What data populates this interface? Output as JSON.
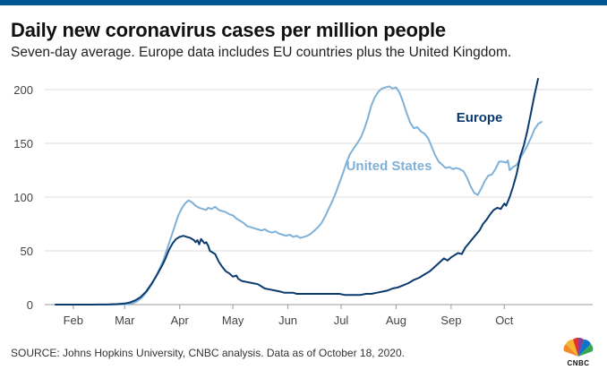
{
  "header": {
    "title": "Daily new coronavirus cases per million people",
    "subtitle": "Seven-day average. Europe data includes EU countries plus the United Kingdom."
  },
  "footer": {
    "source": "SOURCE: Johns Hopkins University, CNBC analysis. Data as of October 18, 2020.",
    "logo_text": "CNBC"
  },
  "chart_data": {
    "type": "line",
    "title": "Daily new coronavirus cases per million people",
    "subtitle": "Seven-day average. Europe data includes EU countries plus the United Kingdom.",
    "xlabel": "",
    "ylabel": "",
    "x_unit": "days since Jan 22, 2020",
    "xlim": [
      0,
      270
    ],
    "ylim": [
      0,
      210
    ],
    "yticks": [
      0,
      50,
      100,
      150,
      200
    ],
    "ytick_labels": [
      "0",
      "50",
      "100",
      "150",
      "200"
    ],
    "xticks": [
      {
        "x": 10,
        "label": "Feb"
      },
      {
        "x": 39,
        "label": "Mar"
      },
      {
        "x": 70,
        "label": "Apr"
      },
      {
        "x": 100,
        "label": "May"
      },
      {
        "x": 131,
        "label": "Jun"
      },
      {
        "x": 161,
        "label": "Jul"
      },
      {
        "x": 192,
        "label": "Aug"
      },
      {
        "x": 223,
        "label": "Sep"
      },
      {
        "x": 253,
        "label": "Oct"
      }
    ],
    "grid": true,
    "series": [
      {
        "name": "Europe",
        "color": "#0b3a6e",
        "label_at": [
          239,
          170
        ],
        "points": [
          [
            0,
            0
          ],
          [
            20,
            0
          ],
          [
            30,
            0.2
          ],
          [
            35,
            0.5
          ],
          [
            39,
            1
          ],
          [
            42,
            2
          ],
          [
            45,
            4
          ],
          [
            48,
            7
          ],
          [
            51,
            12
          ],
          [
            54,
            19
          ],
          [
            57,
            27
          ],
          [
            60,
            36
          ],
          [
            62,
            43
          ],
          [
            64,
            51
          ],
          [
            66,
            57
          ],
          [
            68,
            61
          ],
          [
            70,
            63
          ],
          [
            72,
            64
          ],
          [
            74,
            63
          ],
          [
            76,
            62
          ],
          [
            78,
            60
          ],
          [
            79,
            58
          ],
          [
            80,
            60
          ],
          [
            81,
            56
          ],
          [
            82,
            61
          ],
          [
            83,
            59
          ],
          [
            84,
            57
          ],
          [
            85,
            58
          ],
          [
            86,
            55
          ],
          [
            87,
            50
          ],
          [
            89,
            48
          ],
          [
            90,
            47
          ],
          [
            92,
            40
          ],
          [
            94,
            35
          ],
          [
            96,
            31
          ],
          [
            98,
            29
          ],
          [
            100,
            26
          ],
          [
            102,
            27
          ],
          [
            103,
            24
          ],
          [
            105,
            22
          ],
          [
            108,
            21
          ],
          [
            111,
            20
          ],
          [
            114,
            19
          ],
          [
            116,
            17
          ],
          [
            118,
            15
          ],
          [
            121,
            14
          ],
          [
            124,
            13
          ],
          [
            127,
            12
          ],
          [
            129,
            11
          ],
          [
            131,
            11
          ],
          [
            134,
            11
          ],
          [
            136,
            10
          ],
          [
            139,
            10
          ],
          [
            142,
            10
          ],
          [
            145,
            10
          ],
          [
            148,
            10
          ],
          [
            151,
            10
          ],
          [
            154,
            10
          ],
          [
            157,
            10
          ],
          [
            160,
            10
          ],
          [
            163,
            9
          ],
          [
            166,
            9
          ],
          [
            169,
            9
          ],
          [
            172,
            9
          ],
          [
            175,
            10
          ],
          [
            178,
            10
          ],
          [
            181,
            11
          ],
          [
            184,
            12
          ],
          [
            187,
            13
          ],
          [
            190,
            15
          ],
          [
            193,
            16
          ],
          [
            196,
            18
          ],
          [
            199,
            20
          ],
          [
            202,
            23
          ],
          [
            205,
            25
          ],
          [
            208,
            28
          ],
          [
            211,
            31
          ],
          [
            213,
            34
          ],
          [
            215,
            37
          ],
          [
            217,
            40
          ],
          [
            219,
            43
          ],
          [
            221,
            41
          ],
          [
            223,
            44
          ],
          [
            225,
            46
          ],
          [
            227,
            48
          ],
          [
            229,
            47
          ],
          [
            231,
            53
          ],
          [
            233,
            57
          ],
          [
            235,
            61
          ],
          [
            237,
            65
          ],
          [
            239,
            69
          ],
          [
            241,
            75
          ],
          [
            243,
            79
          ],
          [
            245,
            84
          ],
          [
            247,
            88
          ],
          [
            249,
            90
          ],
          [
            251,
            89
          ],
          [
            253,
            94
          ],
          [
            254,
            92
          ],
          [
            256,
            100
          ],
          [
            258,
            110
          ],
          [
            260,
            122
          ],
          [
            262,
            138
          ],
          [
            264,
            148
          ],
          [
            266,
            162
          ],
          [
            268,
            178
          ],
          [
            270,
            195
          ],
          [
            272,
            210
          ]
        ]
      },
      {
        "name": "United States",
        "color": "#7fb1d8",
        "label_at": [
          188,
          125
        ],
        "points": [
          [
            0,
            0
          ],
          [
            30,
            0
          ],
          [
            39,
            0.3
          ],
          [
            43,
            1
          ],
          [
            46,
            3
          ],
          [
            49,
            7
          ],
          [
            52,
            13
          ],
          [
            55,
            21
          ],
          [
            58,
            31
          ],
          [
            61,
            42
          ],
          [
            63,
            52
          ],
          [
            65,
            62
          ],
          [
            67,
            72
          ],
          [
            69,
            82
          ],
          [
            71,
            89
          ],
          [
            73,
            94
          ],
          [
            75,
            97
          ],
          [
            77,
            95
          ],
          [
            79,
            92
          ],
          [
            81,
            90
          ],
          [
            83,
            89
          ],
          [
            85,
            88
          ],
          [
            86,
            90
          ],
          [
            88,
            89
          ],
          [
            90,
            91
          ],
          [
            92,
            88
          ],
          [
            94,
            87
          ],
          [
            96,
            86
          ],
          [
            98,
            84
          ],
          [
            100,
            83
          ],
          [
            102,
            80
          ],
          [
            104,
            78
          ],
          [
            106,
            76
          ],
          [
            108,
            73
          ],
          [
            110,
            72
          ],
          [
            112,
            71
          ],
          [
            114,
            70
          ],
          [
            116,
            69
          ],
          [
            118,
            70
          ],
          [
            120,
            68
          ],
          [
            122,
            67
          ],
          [
            124,
            68
          ],
          [
            126,
            66
          ],
          [
            128,
            65
          ],
          [
            130,
            64
          ],
          [
            132,
            65
          ],
          [
            134,
            63
          ],
          [
            136,
            64
          ],
          [
            138,
            62
          ],
          [
            140,
            63
          ],
          [
            142,
            64
          ],
          [
            144,
            66
          ],
          [
            146,
            69
          ],
          [
            148,
            72
          ],
          [
            150,
            76
          ],
          [
            152,
            82
          ],
          [
            154,
            89
          ],
          [
            156,
            96
          ],
          [
            158,
            104
          ],
          [
            160,
            113
          ],
          [
            162,
            122
          ],
          [
            164,
            132
          ],
          [
            166,
            140
          ],
          [
            168,
            145
          ],
          [
            170,
            150
          ],
          [
            172,
            155
          ],
          [
            174,
            163
          ],
          [
            176,
            173
          ],
          [
            178,
            185
          ],
          [
            180,
            193
          ],
          [
            182,
            198
          ],
          [
            184,
            201
          ],
          [
            186,
            202
          ],
          [
            188,
            203
          ],
          [
            190,
            201
          ],
          [
            192,
            202
          ],
          [
            194,
            197
          ],
          [
            196,
            188
          ],
          [
            198,
            178
          ],
          [
            200,
            169
          ],
          [
            202,
            164
          ],
          [
            204,
            165
          ],
          [
            206,
            161
          ],
          [
            208,
            159
          ],
          [
            210,
            155
          ],
          [
            212,
            147
          ],
          [
            214,
            139
          ],
          [
            216,
            133
          ],
          [
            218,
            130
          ],
          [
            220,
            127
          ],
          [
            222,
            128
          ],
          [
            224,
            126
          ],
          [
            226,
            127
          ],
          [
            228,
            126
          ],
          [
            230,
            124
          ],
          [
            232,
            118
          ],
          [
            234,
            110
          ],
          [
            236,
            104
          ],
          [
            238,
            102
          ],
          [
            240,
            108
          ],
          [
            242,
            115
          ],
          [
            244,
            120
          ],
          [
            246,
            121
          ],
          [
            248,
            126
          ],
          [
            250,
            133
          ],
          [
            252,
            133
          ],
          [
            254,
            132
          ],
          [
            255,
            134
          ],
          [
            256,
            125
          ],
          [
            258,
            128
          ],
          [
            260,
            130
          ],
          [
            262,
            136
          ],
          [
            264,
            142
          ],
          [
            266,
            148
          ],
          [
            268,
            155
          ],
          [
            270,
            163
          ],
          [
            272,
            168
          ],
          [
            274,
            170
          ]
        ]
      }
    ]
  }
}
